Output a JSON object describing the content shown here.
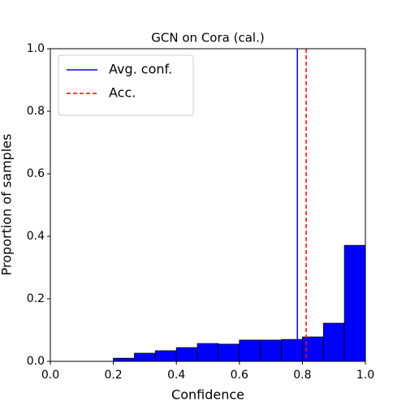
{
  "chart_data": {
    "type": "histogram",
    "title": "GCN on Cora (cal.)",
    "xlabel": "Confidence",
    "ylabel": "Proportion of samples",
    "bins": [
      0,
      0.0667,
      0.1333,
      0.2,
      0.2667,
      0.3333,
      0.4,
      0.4667,
      0.5333,
      0.6,
      0.6667,
      0.7333,
      0.8,
      0.8667,
      0.9333,
      1.0
    ],
    "counts": [
      0,
      0,
      0,
      0.01,
      0.026,
      0.034,
      0.044,
      0.057,
      0.055,
      0.068,
      0.068,
      0.07,
      0.078,
      0.122,
      0.371
    ],
    "color": "#0000ff",
    "edgecolor": "#000000",
    "lines": [
      {
        "name": "Avg. conf.",
        "value": 0.784,
        "color": "#0000ff",
        "style": "solid"
      },
      {
        "name": "Acc.",
        "value": 0.812,
        "color": "#ff0000",
        "style": "dashed"
      }
    ],
    "legend": "upper left",
    "xlim": [
      0,
      1.0
    ],
    "ylim": [
      0,
      1.0
    ],
    "xticks": [
      {
        "value": 0,
        "label": "0.0"
      },
      0.2,
      0.4,
      0.6,
      0.8,
      {
        "value": 1.0,
        "label": "1.0"
      }
    ],
    "yticks": [
      {
        "value": 0,
        "label": "0.0"
      },
      0.2,
      0.4,
      0.6,
      0.8,
      {
        "value": 1.0,
        "label": "1.0"
      }
    ]
  }
}
